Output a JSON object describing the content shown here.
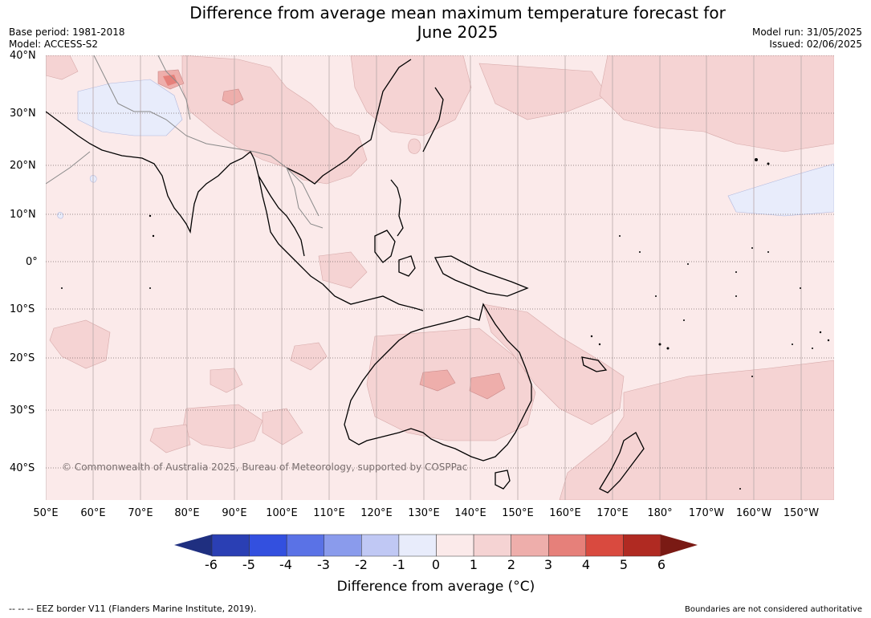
{
  "title_line1": "Difference from average mean maximum temperature forecast for",
  "title_line2": "June 2025",
  "base_period": "Base period: 1981-2018",
  "model": "Model: ACCESS-S2",
  "model_run": "Model run: 31/05/2025",
  "issued": "Issued: 02/06/2025",
  "lat_labels": [
    "40°N",
    "30°N",
    "20°N",
    "10°N",
    "0°",
    "10°S",
    "20°S",
    "30°S",
    "40°S"
  ],
  "lon_labels": [
    "50°E",
    "60°E",
    "70°E",
    "80°E",
    "90°E",
    "100°E",
    "110°E",
    "120°E",
    "130°E",
    "140°E",
    "150°E",
    "160°E",
    "170°E",
    "180°",
    "170°W",
    "160°W",
    "150°W"
  ],
  "copyright": "© Commonwealth of Australia 2025, Bureau of Meteorology, supported by COSPPac",
  "colorbar": {
    "ticks": [
      "-6",
      "-5",
      "-4",
      "-3",
      "-2",
      "-1",
      "0",
      "1",
      "2",
      "3",
      "4",
      "5",
      "6"
    ],
    "colors": [
      "#1f2f80",
      "#2a3fb4",
      "#3350df",
      "#5a72e6",
      "#8a9bec",
      "#c0c8f4",
      "#e8ecfb",
      "#fbeaea",
      "#f5d3d3",
      "#eeaeab",
      "#e6807a",
      "#d94a3f",
      "#b02a22",
      "#7a1a14"
    ],
    "label": "Difference from average (°C)"
  },
  "eez_note": "--  --  -- EEZ border V11 (Flanders Marine Institute, 2019).",
  "boundaries_note": "Boundaries are not considered authoritative"
}
